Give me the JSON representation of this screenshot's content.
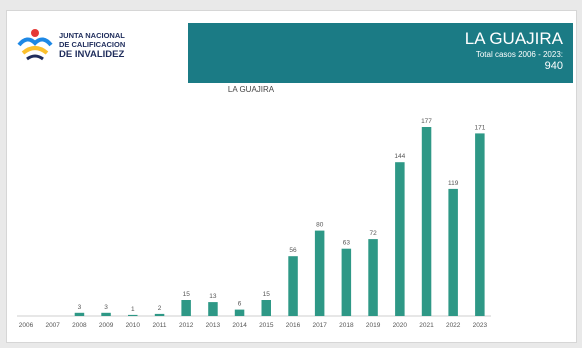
{
  "logo": {
    "line1": "JUNTA NACIONAL",
    "line2": "DE CALIFICACION",
    "line3": "DE INVALIDEZ"
  },
  "header": {
    "title": "LA GUAJIRA",
    "subtitle": "Total casos 2006 - 2023:",
    "total": "940"
  },
  "colors": {
    "header_bg": "#1b7b85",
    "bar": "#2e9886"
  },
  "chart_data": {
    "type": "bar",
    "title": "LA GUAJIRA",
    "categories": [
      "2006",
      "2007",
      "2008",
      "2009",
      "2010",
      "2011",
      "2012",
      "2013",
      "2014",
      "2015",
      "2016",
      "2017",
      "2018",
      "2019",
      "2020",
      "2021",
      "2022",
      "2023"
    ],
    "values": [
      0,
      0,
      3,
      3,
      1,
      2,
      15,
      13,
      6,
      15,
      56,
      80,
      63,
      72,
      144,
      177,
      119,
      171
    ],
    "labels": [
      "",
      "",
      "3",
      "3",
      "1",
      "2",
      "15",
      "13",
      "6",
      "15",
      "56",
      "80",
      "63",
      "72",
      "144",
      "177",
      "119",
      "171"
    ],
    "ylim": [
      0,
      177
    ],
    "grid": false,
    "legend": "none"
  }
}
